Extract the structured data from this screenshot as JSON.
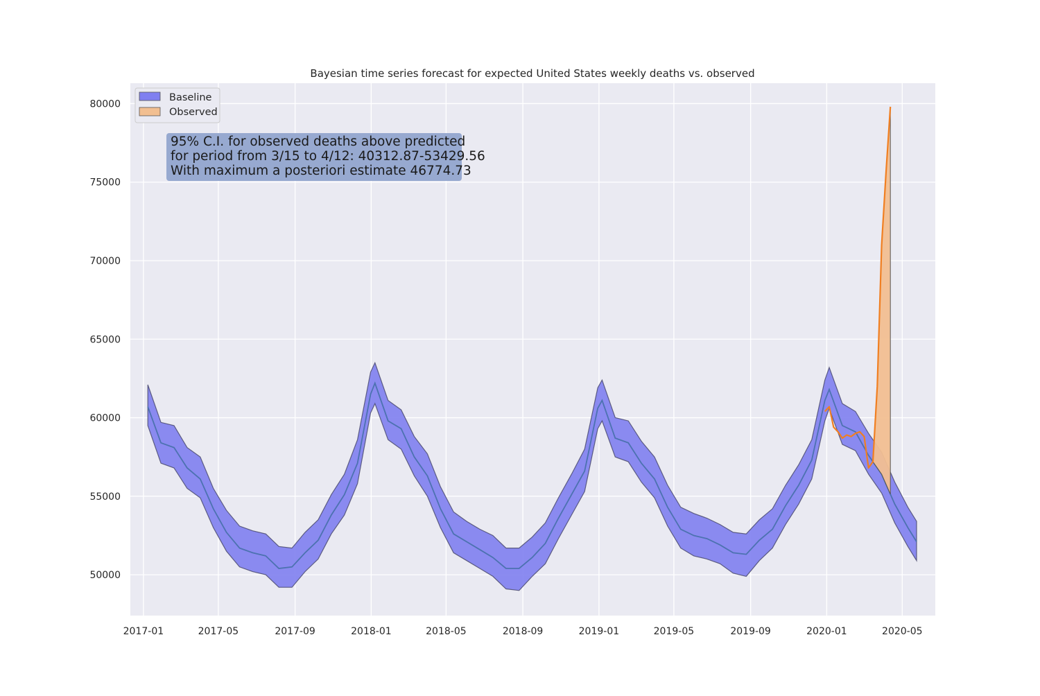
{
  "chart_data": {
    "type": "area",
    "title": "Bayesian time series forecast for expected United States weekly deaths vs. observed",
    "xlabel": "",
    "ylabel": "",
    "x_axis_type": "date",
    "xlim": [
      "2016-12-11",
      "2020-06-23"
    ],
    "ylim": [
      47400,
      81300
    ],
    "grid": true,
    "legend_placement": "top-left",
    "x_ticks": [
      "2017-01",
      "2017-05",
      "2017-09",
      "2018-01",
      "2018-05",
      "2018-09",
      "2019-01",
      "2019-05",
      "2019-09",
      "2020-01",
      "2020-05"
    ],
    "y_ticks": [
      "50000",
      "55000",
      "60000",
      "65000",
      "70000",
      "75000",
      "80000"
    ],
    "legend": [
      {
        "label": "Baseline",
        "color": "#7f7ff0"
      },
      {
        "label": "Observed",
        "color": "#f2bf91"
      }
    ],
    "annotation": {
      "lines": [
        "95% C.I. for observed deaths above predicted",
        "for period from 3/15 to 4/12: 40312.87-53429.56",
        "With maximum a posteriori estimate 46774.73"
      ]
    },
    "series": [
      {
        "name": "Baseline",
        "kind": "band_with_median",
        "color": "#7f7ff0",
        "median_color": "#4c72b0",
        "points": [
          {
            "x": "2017-01-08",
            "y": 60700,
            "lo": 59500,
            "hi": 62100
          },
          {
            "x": "2017-01-29",
            "y": 58400,
            "lo": 57100,
            "hi": 59700
          },
          {
            "x": "2017-02-19",
            "y": 58100,
            "lo": 56800,
            "hi": 59500
          },
          {
            "x": "2017-03-12",
            "y": 56800,
            "lo": 55500,
            "hi": 58100
          },
          {
            "x": "2017-04-02",
            "y": 56100,
            "lo": 54900,
            "hi": 57500
          },
          {
            "x": "2017-04-23",
            "y": 54200,
            "lo": 53000,
            "hi": 55500
          },
          {
            "x": "2017-05-14",
            "y": 52700,
            "lo": 51500,
            "hi": 54100
          },
          {
            "x": "2017-06-04",
            "y": 51700,
            "lo": 50500,
            "hi": 53100
          },
          {
            "x": "2017-06-25",
            "y": 51400,
            "lo": 50200,
            "hi": 52800
          },
          {
            "x": "2017-07-16",
            "y": 51200,
            "lo": 50000,
            "hi": 52600
          },
          {
            "x": "2017-08-06",
            "y": 50400,
            "lo": 49200,
            "hi": 51800
          },
          {
            "x": "2017-08-27",
            "y": 50500,
            "lo": 49200,
            "hi": 51700
          },
          {
            "x": "2017-09-17",
            "y": 51400,
            "lo": 50200,
            "hi": 52700
          },
          {
            "x": "2017-10-08",
            "y": 52200,
            "lo": 51000,
            "hi": 53500
          },
          {
            "x": "2017-10-29",
            "y": 53800,
            "lo": 52600,
            "hi": 55100
          },
          {
            "x": "2017-11-19",
            "y": 55100,
            "lo": 53800,
            "hi": 56400
          },
          {
            "x": "2017-12-10",
            "y": 57100,
            "lo": 55800,
            "hi": 58600
          },
          {
            "x": "2017-12-31",
            "y": 61500,
            "lo": 60300,
            "hi": 62900
          },
          {
            "x": "2018-01-07",
            "y": 62200,
            "lo": 60900,
            "hi": 63500
          },
          {
            "x": "2018-01-28",
            "y": 59800,
            "lo": 58600,
            "hi": 61100
          },
          {
            "x": "2018-02-18",
            "y": 59300,
            "lo": 58000,
            "hi": 60500
          },
          {
            "x": "2018-03-11",
            "y": 57500,
            "lo": 56300,
            "hi": 58800
          },
          {
            "x": "2018-04-01",
            "y": 56300,
            "lo": 55000,
            "hi": 57700
          },
          {
            "x": "2018-04-22",
            "y": 54200,
            "lo": 53000,
            "hi": 55600
          },
          {
            "x": "2018-05-13",
            "y": 52600,
            "lo": 51400,
            "hi": 54000
          },
          {
            "x": "2018-06-03",
            "y": 52100,
            "lo": 50900,
            "hi": 53400
          },
          {
            "x": "2018-06-24",
            "y": 51600,
            "lo": 50400,
            "hi": 52900
          },
          {
            "x": "2018-07-15",
            "y": 51100,
            "lo": 49900,
            "hi": 52500
          },
          {
            "x": "2018-08-05",
            "y": 50400,
            "lo": 49100,
            "hi": 51700
          },
          {
            "x": "2018-08-26",
            "y": 50400,
            "lo": 49000,
            "hi": 51700
          },
          {
            "x": "2018-09-16",
            "y": 51100,
            "lo": 49900,
            "hi": 52400
          },
          {
            "x": "2018-10-07",
            "y": 52000,
            "lo": 50700,
            "hi": 53300
          },
          {
            "x": "2018-10-28",
            "y": 53600,
            "lo": 52300,
            "hi": 54900
          },
          {
            "x": "2018-11-18",
            "y": 55100,
            "lo": 53800,
            "hi": 56400
          },
          {
            "x": "2018-12-09",
            "y": 56600,
            "lo": 55300,
            "hi": 58000
          },
          {
            "x": "2018-12-30",
            "y": 60600,
            "lo": 59300,
            "hi": 61900
          },
          {
            "x": "2019-01-06",
            "y": 61100,
            "lo": 59800,
            "hi": 62400
          },
          {
            "x": "2019-01-27",
            "y": 58700,
            "lo": 57500,
            "hi": 60000
          },
          {
            "x": "2019-02-17",
            "y": 58400,
            "lo": 57200,
            "hi": 59800
          },
          {
            "x": "2019-03-10",
            "y": 57100,
            "lo": 55900,
            "hi": 58500
          },
          {
            "x": "2019-03-31",
            "y": 56100,
            "lo": 54900,
            "hi": 57500
          },
          {
            "x": "2019-04-21",
            "y": 54300,
            "lo": 53100,
            "hi": 55700
          },
          {
            "x": "2019-05-12",
            "y": 52900,
            "lo": 51700,
            "hi": 54300
          },
          {
            "x": "2019-06-02",
            "y": 52500,
            "lo": 51200,
            "hi": 53900
          },
          {
            "x": "2019-06-23",
            "y": 52300,
            "lo": 51000,
            "hi": 53600
          },
          {
            "x": "2019-07-14",
            "y": 51900,
            "lo": 50700,
            "hi": 53200
          },
          {
            "x": "2019-08-04",
            "y": 51400,
            "lo": 50100,
            "hi": 52700
          },
          {
            "x": "2019-08-25",
            "y": 51300,
            "lo": 49900,
            "hi": 52600
          },
          {
            "x": "2019-09-15",
            "y": 52200,
            "lo": 50900,
            "hi": 53500
          },
          {
            "x": "2019-10-06",
            "y": 52900,
            "lo": 51700,
            "hi": 54200
          },
          {
            "x": "2019-10-27",
            "y": 54400,
            "lo": 53200,
            "hi": 55700
          },
          {
            "x": "2019-11-17",
            "y": 55700,
            "lo": 54500,
            "hi": 57000
          },
          {
            "x": "2019-12-08",
            "y": 57300,
            "lo": 56100,
            "hi": 58600
          },
          {
            "x": "2019-12-29",
            "y": 61100,
            "lo": 59800,
            "hi": 62400
          },
          {
            "x": "2020-01-05",
            "y": 61800,
            "lo": 60600,
            "hi": 63200
          },
          {
            "x": "2020-01-26",
            "y": 59500,
            "lo": 58300,
            "hi": 60900
          },
          {
            "x": "2020-02-16",
            "y": 59100,
            "lo": 57900,
            "hi": 60400
          },
          {
            "x": "2020-03-08",
            "y": 57600,
            "lo": 56400,
            "hi": 59000
          },
          {
            "x": "2020-03-29",
            "y": 56400,
            "lo": 55200,
            "hi": 57800
          },
          {
            "x": "2020-04-19",
            "y": 54500,
            "lo": 53300,
            "hi": 55900
          },
          {
            "x": "2020-05-10",
            "y": 53000,
            "lo": 51800,
            "hi": 54300
          },
          {
            "x": "2020-05-24",
            "y": 52100,
            "lo": 50900,
            "hi": 53400
          }
        ]
      },
      {
        "name": "Observed",
        "kind": "line",
        "color": "#f07f22",
        "fill_color": "#f2bf91",
        "fill_range": [
          "2020-03-15",
          "2020-04-12"
        ],
        "points": [
          {
            "x": "2019-12-29",
            "y": 60400
          },
          {
            "x": "2020-01-05",
            "y": 60700
          },
          {
            "x": "2020-01-12",
            "y": 59400
          },
          {
            "x": "2020-01-19",
            "y": 59100
          },
          {
            "x": "2020-01-26",
            "y": 58700
          },
          {
            "x": "2020-02-02",
            "y": 58900
          },
          {
            "x": "2020-02-09",
            "y": 58800
          },
          {
            "x": "2020-02-16",
            "y": 59000
          },
          {
            "x": "2020-02-23",
            "y": 59100
          },
          {
            "x": "2020-03-01",
            "y": 58800
          },
          {
            "x": "2020-03-08",
            "y": 56800
          },
          {
            "x": "2020-03-15",
            "y": 57200
          },
          {
            "x": "2020-03-22",
            "y": 62000
          },
          {
            "x": "2020-03-29",
            "y": 71000
          },
          {
            "x": "2020-04-05",
            "y": 75600
          },
          {
            "x": "2020-04-12",
            "y": 79800
          }
        ]
      }
    ]
  }
}
